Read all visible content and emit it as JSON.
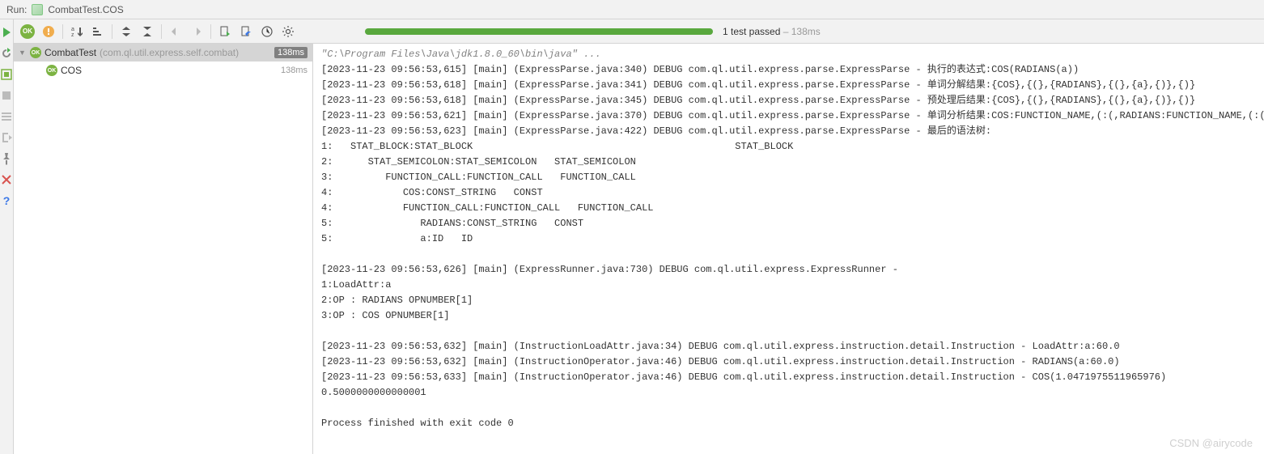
{
  "header": {
    "run_label": "Run:",
    "title": "CombatTest.COS"
  },
  "toolbar": {
    "progress_text": "1 test passed",
    "progress_time": " – 138ms",
    "progress_color": "#59a83e"
  },
  "tree": {
    "root": {
      "name": "CombatTest",
      "pkg": "(com.ql.util.express.self.combat)",
      "time": "138ms"
    },
    "child": {
      "name": "COS",
      "time": "138ms"
    }
  },
  "console": {
    "cmd": "\"C:\\Program Files\\Java\\jdk1.8.0_60\\bin\\java\" ...",
    "lines": [
      "[2023-11-23 09:56:53,615] [main] (ExpressParse.java:340) DEBUG com.ql.util.express.parse.ExpressParse - 执行的表达式:COS(RADIANS(a))",
      "[2023-11-23 09:56:53,618] [main] (ExpressParse.java:341) DEBUG com.ql.util.express.parse.ExpressParse - 单词分解结果:{COS},{(},{RADIANS},{(},{a},{)},{)}",
      "[2023-11-23 09:56:53,618] [main] (ExpressParse.java:345) DEBUG com.ql.util.express.parse.ExpressParse - 预处理后结果:{COS},{(},{RADIANS},{(},{a},{)},{)}",
      "[2023-11-23 09:56:53,621] [main] (ExpressParse.java:370) DEBUG com.ql.util.express.parse.ExpressParse - 单词分析结果:COS:FUNCTION_NAME,(:(,RADIANS:FUNCTION_NAME,(:(,a:ID,):),):)",
      "[2023-11-23 09:56:53,623] [main] (ExpressParse.java:422) DEBUG com.ql.util.express.parse.ExpressParse - 最后的语法树:",
      "1:   STAT_BLOCK:STAT_BLOCK                                             STAT_BLOCK",
      "2:      STAT_SEMICOLON:STAT_SEMICOLON   STAT_SEMICOLON",
      "3:         FUNCTION_CALL:FUNCTION_CALL   FUNCTION_CALL",
      "4:            COS:CONST_STRING   CONST",
      "4:            FUNCTION_CALL:FUNCTION_CALL   FUNCTION_CALL",
      "5:               RADIANS:CONST_STRING   CONST",
      "5:               a:ID   ID",
      "",
      "[2023-11-23 09:56:53,626] [main] (ExpressRunner.java:730) DEBUG com.ql.util.express.ExpressRunner - ",
      "1:LoadAttr:a",
      "2:OP : RADIANS OPNUMBER[1]",
      "3:OP : COS OPNUMBER[1]",
      "",
      "[2023-11-23 09:56:53,632] [main] (InstructionLoadAttr.java:34) DEBUG com.ql.util.express.instruction.detail.Instruction - LoadAttr:a:60.0",
      "[2023-11-23 09:56:53,632] [main] (InstructionOperator.java:46) DEBUG com.ql.util.express.instruction.detail.Instruction - RADIANS(a:60.0)",
      "[2023-11-23 09:56:53,633] [main] (InstructionOperator.java:46) DEBUG com.ql.util.express.instruction.detail.Instruction - COS(1.0471975511965976)",
      "0.5000000000000001",
      ""
    ],
    "exit": "Process finished with exit code 0"
  },
  "watermark": "CSDN @airycode"
}
